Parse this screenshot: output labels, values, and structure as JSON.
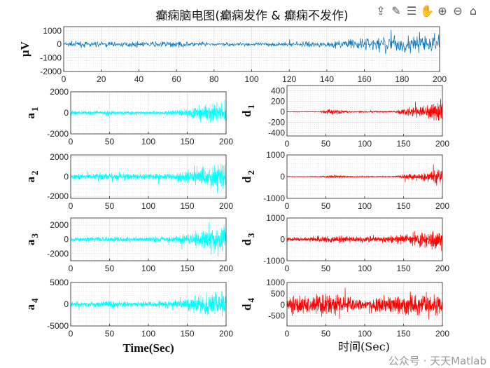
{
  "title": "癫痫脑电图(癫痫发作 & 癫痫不发作)",
  "xlabel_left": "Time(Sec)",
  "xlabel_right": "时间(Sec)",
  "watermark": "公众号 · 天天Matlab",
  "toolbar": {
    "icons": [
      "export-icon",
      "brush-icon",
      "datatip-icon",
      "pan-hand-icon",
      "zoom-in-icon",
      "zoom-out-icon",
      "home-icon"
    ]
  },
  "chart_data": [
    {
      "type": "line",
      "id": "eeg",
      "ylabel": "μV",
      "ylabel_sub": "",
      "color": "#0072BD",
      "xlim": [
        0,
        200
      ],
      "ylim": [
        -2000,
        1300
      ],
      "xticks": [
        0,
        20,
        40,
        60,
        80,
        100,
        120,
        140,
        160,
        180,
        200
      ],
      "yticks": [
        -2000,
        -1000,
        0,
        1000
      ],
      "grid": true,
      "envelope_x": [
        0,
        20,
        40,
        60,
        80,
        100,
        120,
        140,
        160,
        180,
        200
      ],
      "envelope_amplitude": [
        300,
        300,
        250,
        350,
        200,
        200,
        250,
        300,
        800,
        1000,
        1200
      ]
    },
    {
      "type": "line",
      "id": "a1",
      "ylabel": "a",
      "ylabel_sub": "1",
      "color": "#00FFFF",
      "xlim": [
        0,
        200
      ],
      "ylim": [
        -2000,
        2000
      ],
      "xticks": [
        0,
        50,
        100,
        150,
        200
      ],
      "yticks": [
        -2000,
        0,
        2000
      ],
      "grid": true,
      "envelope_x": [
        0,
        20,
        40,
        60,
        80,
        100,
        120,
        140,
        160,
        180,
        200
      ],
      "envelope_amplitude": [
        300,
        250,
        300,
        300,
        250,
        250,
        300,
        400,
        800,
        1200,
        1500
      ]
    },
    {
      "type": "line",
      "id": "d1",
      "ylabel": "d",
      "ylabel_sub": "1",
      "color": "#FF0000",
      "xlim": [
        0,
        200
      ],
      "ylim": [
        -460,
        500
      ],
      "xticks": [
        0,
        50,
        100,
        150,
        200
      ],
      "yticks": [
        -400,
        -200,
        0,
        200,
        400
      ],
      "grid": true,
      "envelope_x": [
        0,
        20,
        40,
        60,
        80,
        100,
        120,
        140,
        160,
        180,
        200
      ],
      "envelope_amplitude": [
        8,
        8,
        10,
        90,
        20,
        20,
        20,
        25,
        160,
        150,
        450
      ]
    },
    {
      "type": "line",
      "id": "a2",
      "ylabel": "a",
      "ylabel_sub": "2",
      "color": "#00FFFF",
      "xlim": [
        0,
        200
      ],
      "ylim": [
        -2200,
        2200
      ],
      "xticks": [
        0,
        50,
        100,
        150,
        200
      ],
      "yticks": [
        -2000,
        0,
        2000
      ],
      "grid": true,
      "envelope_x": [
        0,
        20,
        40,
        60,
        80,
        100,
        120,
        140,
        160,
        180,
        200
      ],
      "envelope_amplitude": [
        400,
        400,
        500,
        500,
        400,
        400,
        500,
        700,
        1200,
        1800,
        2200
      ]
    },
    {
      "type": "line",
      "id": "d2",
      "ylabel": "d",
      "ylabel_sub": "2",
      "color": "#FF0000",
      "xlim": [
        0,
        200
      ],
      "ylim": [
        -1000,
        1000
      ],
      "xticks": [
        0,
        50,
        100,
        150,
        200
      ],
      "yticks": [
        -1000,
        0,
        1000
      ],
      "grid": true,
      "envelope_x": [
        0,
        20,
        40,
        60,
        80,
        100,
        120,
        140,
        160,
        180,
        200
      ],
      "envelope_amplitude": [
        15,
        15,
        20,
        110,
        30,
        30,
        30,
        35,
        250,
        300,
        700
      ]
    },
    {
      "type": "line",
      "id": "a3",
      "ylabel": "a",
      "ylabel_sub": "3",
      "color": "#00FFFF",
      "xlim": [
        0,
        200
      ],
      "ylim": [
        -3000,
        3000
      ],
      "xticks": [
        0,
        50,
        100,
        150,
        200
      ],
      "yticks": [
        -2000,
        0,
        2000
      ],
      "grid": true,
      "envelope_x": [
        0,
        20,
        40,
        60,
        80,
        100,
        120,
        140,
        160,
        180,
        200
      ],
      "envelope_amplitude": [
        500,
        500,
        600,
        600,
        500,
        500,
        600,
        800,
        1500,
        2200,
        2800
      ]
    },
    {
      "type": "line",
      "id": "d3",
      "ylabel": "d",
      "ylabel_sub": "3",
      "color": "#FF0000",
      "xlim": [
        0,
        200
      ],
      "ylim": [
        -1000,
        1000
      ],
      "xticks": [
        0,
        50,
        100,
        150,
        200
      ],
      "yticks": [
        -1000,
        0,
        1000
      ],
      "grid": true,
      "envelope_x": [
        0,
        20,
        40,
        60,
        80,
        100,
        120,
        140,
        160,
        180,
        200
      ],
      "envelope_amplitude": [
        150,
        150,
        200,
        250,
        200,
        200,
        200,
        250,
        400,
        500,
        700
      ]
    },
    {
      "type": "line",
      "id": "a4",
      "ylabel": "a",
      "ylabel_sub": "4",
      "color": "#00FFFF",
      "xlim": [
        0,
        200
      ],
      "ylim": [
        -5000,
        5000
      ],
      "xticks": [
        0,
        50,
        100,
        150,
        200
      ],
      "yticks": [
        -5000,
        0,
        5000
      ],
      "grid": true,
      "envelope_x": [
        0,
        20,
        40,
        60,
        80,
        100,
        120,
        140,
        160,
        180,
        200
      ],
      "envelope_amplitude": [
        800,
        800,
        1200,
        1200,
        900,
        900,
        1200,
        1500,
        3000,
        4000,
        4500
      ]
    },
    {
      "type": "line",
      "id": "d4",
      "ylabel": "d",
      "ylabel_sub": "4",
      "color": "#FF0000",
      "xlim": [
        0,
        200
      ],
      "ylim": [
        -950,
        1000
      ],
      "xticks": [
        0,
        50,
        100,
        150,
        200
      ],
      "yticks": [
        -500,
        0,
        500,
        1000
      ],
      "grid": true,
      "envelope_x": [
        0,
        20,
        40,
        60,
        80,
        100,
        120,
        140,
        160,
        180,
        200
      ],
      "envelope_amplitude": [
        600,
        600,
        700,
        700,
        500,
        300,
        500,
        600,
        700,
        700,
        900
      ]
    }
  ]
}
